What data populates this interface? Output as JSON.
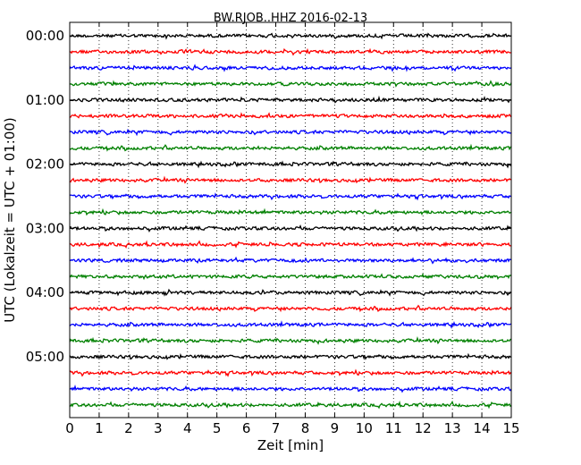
{
  "chart_data": {
    "type": "line",
    "title": "BW.RJOB..HHZ 2016-02-13",
    "xlabel": "Zeit  [min]",
    "ylabel": "UTC (Lokalzeit = UTC + 01:00)",
    "xlim": [
      0,
      15
    ],
    "x_ticks": [
      "0",
      "1",
      "2",
      "3",
      "4",
      "5",
      "6",
      "7",
      "8",
      "9",
      "10",
      "11",
      "12",
      "13",
      "14",
      "15"
    ],
    "y_ticks": [
      "00:00",
      "01:00",
      "02:00",
      "03:00",
      "04:00",
      "05:00"
    ],
    "vertical_grid": "dotted",
    "trace_colors": [
      "#000000",
      "#ff0000",
      "#0000ff",
      "#008000"
    ],
    "traces_start_minutes": [
      0,
      15,
      30,
      45,
      60,
      75,
      90,
      105,
      120,
      135,
      150,
      165,
      180,
      195,
      210,
      225,
      240,
      255,
      270,
      285,
      300,
      315,
      330,
      345
    ]
  }
}
